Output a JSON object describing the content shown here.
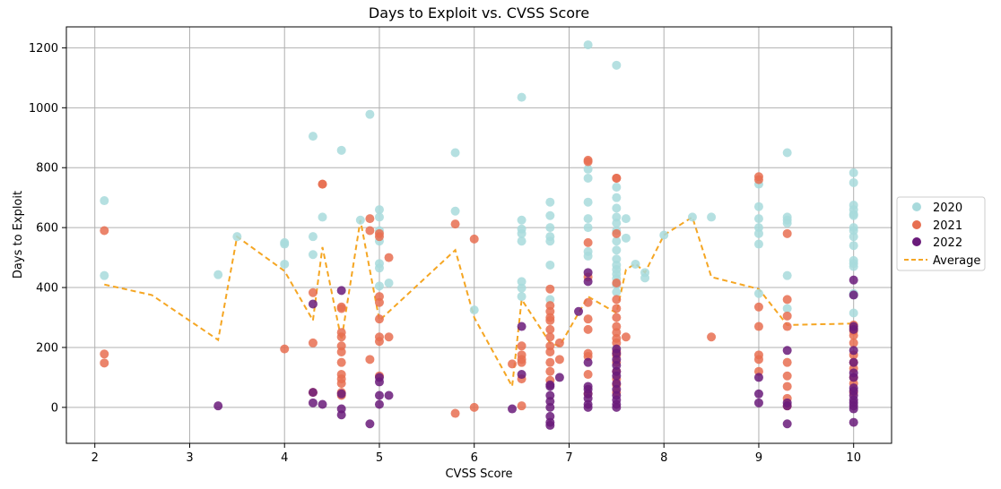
{
  "chart_data": {
    "type": "scatter",
    "title": "Days to Exploit vs. CVSS Score",
    "xlabel": "CVSS Score",
    "ylabel": "Days to Exploit",
    "xlim": [
      1.7,
      10.4
    ],
    "ylim": [
      -120,
      1270
    ],
    "xticks": [
      2,
      3,
      4,
      5,
      6,
      7,
      8,
      9,
      10
    ],
    "yticks": [
      0,
      200,
      400,
      600,
      800,
      1000,
      1200
    ],
    "grid": true,
    "legend_position": "center-right",
    "colors": {
      "s2020": "#a8dadc",
      "s2021": "#e76f51",
      "s2022": "#6a1b7a",
      "average": "#f5a623"
    },
    "series": [
      {
        "name": "2020",
        "points": [
          [
            2.1,
            690
          ],
          [
            2.1,
            440
          ],
          [
            3.3,
            443
          ],
          [
            3.5,
            570
          ],
          [
            4.0,
            550
          ],
          [
            4.0,
            545
          ],
          [
            4.0,
            478
          ],
          [
            4.3,
            905
          ],
          [
            4.3,
            570
          ],
          [
            4.3,
            510
          ],
          [
            4.4,
            635
          ],
          [
            4.6,
            858
          ],
          [
            4.8,
            625
          ],
          [
            4.9,
            978
          ],
          [
            5.0,
            660
          ],
          [
            5.0,
            635
          ],
          [
            5.0,
            590
          ],
          [
            5.0,
            555
          ],
          [
            5.0,
            480
          ],
          [
            5.0,
            465
          ],
          [
            5.0,
            405
          ],
          [
            5.1,
            415
          ],
          [
            5.8,
            850
          ],
          [
            5.8,
            655
          ],
          [
            6.0,
            325
          ],
          [
            6.5,
            1035
          ],
          [
            6.5,
            625
          ],
          [
            6.5,
            595
          ],
          [
            6.5,
            580
          ],
          [
            6.5,
            555
          ],
          [
            6.5,
            420
          ],
          [
            6.5,
            398
          ],
          [
            6.5,
            370
          ],
          [
            6.8,
            685
          ],
          [
            6.8,
            640
          ],
          [
            6.8,
            600
          ],
          [
            6.8,
            570
          ],
          [
            6.8,
            555
          ],
          [
            6.8,
            475
          ],
          [
            6.8,
            360
          ],
          [
            7.2,
            1210
          ],
          [
            7.2,
            795
          ],
          [
            7.2,
            765
          ],
          [
            7.2,
            685
          ],
          [
            7.2,
            630
          ],
          [
            7.2,
            600
          ],
          [
            7.2,
            520
          ],
          [
            7.2,
            505
          ],
          [
            7.5,
            1142
          ],
          [
            7.5,
            735
          ],
          [
            7.5,
            700
          ],
          [
            7.5,
            665
          ],
          [
            7.5,
            635
          ],
          [
            7.5,
            615
          ],
          [
            7.5,
            590
          ],
          [
            7.5,
            555
          ],
          [
            7.5,
            525
          ],
          [
            7.5,
            495
          ],
          [
            7.5,
            475
          ],
          [
            7.5,
            460
          ],
          [
            7.5,
            445
          ],
          [
            7.5,
            430
          ],
          [
            7.5,
            410
          ],
          [
            7.5,
            385
          ],
          [
            7.6,
            630
          ],
          [
            7.6,
            565
          ],
          [
            7.7,
            478
          ],
          [
            7.8,
            450
          ],
          [
            7.8,
            432
          ],
          [
            8.0,
            575
          ],
          [
            8.3,
            635
          ],
          [
            8.5,
            635
          ],
          [
            9.0,
            745
          ],
          [
            9.0,
            670
          ],
          [
            9.0,
            630
          ],
          [
            9.0,
            600
          ],
          [
            9.0,
            580
          ],
          [
            9.0,
            545
          ],
          [
            9.0,
            380
          ],
          [
            9.3,
            850
          ],
          [
            9.3,
            635
          ],
          [
            9.3,
            625
          ],
          [
            9.3,
            615
          ],
          [
            9.3,
            440
          ],
          [
            9.3,
            330
          ],
          [
            10.0,
            783
          ],
          [
            10.0,
            750
          ],
          [
            10.0,
            675
          ],
          [
            10.0,
            660
          ],
          [
            10.0,
            645
          ],
          [
            10.0,
            640
          ],
          [
            10.0,
            600
          ],
          [
            10.0,
            590
          ],
          [
            10.0,
            570
          ],
          [
            10.0,
            540
          ],
          [
            10.0,
            490
          ],
          [
            10.0,
            480
          ],
          [
            10.0,
            470
          ],
          [
            10.0,
            380
          ],
          [
            10.0,
            375
          ],
          [
            10.0,
            315
          ]
        ]
      },
      {
        "name": "2021",
        "points": [
          [
            2.1,
            590
          ],
          [
            2.1,
            178
          ],
          [
            2.1,
            148
          ],
          [
            4.0,
            195
          ],
          [
            4.3,
            383
          ],
          [
            4.3,
            215
          ],
          [
            4.3,
            50
          ],
          [
            4.4,
            745
          ],
          [
            4.4,
            745
          ],
          [
            4.6,
            335
          ],
          [
            4.6,
            330
          ],
          [
            4.6,
            250
          ],
          [
            4.6,
            235
          ],
          [
            4.6,
            205
          ],
          [
            4.6,
            185
          ],
          [
            4.6,
            150
          ],
          [
            4.6,
            110
          ],
          [
            4.6,
            95
          ],
          [
            4.6,
            80
          ],
          [
            4.6,
            50
          ],
          [
            4.6,
            40
          ],
          [
            4.9,
            630
          ],
          [
            4.9,
            590
          ],
          [
            4.9,
            160
          ],
          [
            5.0,
            580
          ],
          [
            5.0,
            570
          ],
          [
            5.0,
            370
          ],
          [
            5.0,
            350
          ],
          [
            5.0,
            295
          ],
          [
            5.0,
            235
          ],
          [
            5.0,
            220
          ],
          [
            5.0,
            105
          ],
          [
            5.1,
            500
          ],
          [
            5.1,
            235
          ],
          [
            5.8,
            612
          ],
          [
            5.8,
            -20
          ],
          [
            6.0,
            562
          ],
          [
            6.0,
            0
          ],
          [
            6.4,
            145
          ],
          [
            6.5,
            205
          ],
          [
            6.5,
            175
          ],
          [
            6.5,
            160
          ],
          [
            6.5,
            150
          ],
          [
            6.5,
            95
          ],
          [
            6.5,
            5
          ],
          [
            6.8,
            395
          ],
          [
            6.8,
            340
          ],
          [
            6.8,
            320
          ],
          [
            6.8,
            300
          ],
          [
            6.8,
            290
          ],
          [
            6.8,
            260
          ],
          [
            6.8,
            235
          ],
          [
            6.8,
            205
          ],
          [
            6.8,
            185
          ],
          [
            6.8,
            150
          ],
          [
            6.8,
            120
          ],
          [
            6.8,
            90
          ],
          [
            6.9,
            215
          ],
          [
            6.9,
            160
          ],
          [
            7.2,
            825
          ],
          [
            7.2,
            820
          ],
          [
            7.2,
            550
          ],
          [
            7.2,
            435
          ],
          [
            7.2,
            350
          ],
          [
            7.2,
            295
          ],
          [
            7.2,
            260
          ],
          [
            7.2,
            180
          ],
          [
            7.2,
            170
          ],
          [
            7.2,
            110
          ],
          [
            7.2,
            45
          ],
          [
            7.5,
            765
          ],
          [
            7.5,
            765
          ],
          [
            7.5,
            580
          ],
          [
            7.5,
            415
          ],
          [
            7.5,
            360
          ],
          [
            7.5,
            330
          ],
          [
            7.5,
            300
          ],
          [
            7.5,
            270
          ],
          [
            7.5,
            250
          ],
          [
            7.5,
            230
          ],
          [
            7.5,
            215
          ],
          [
            7.5,
            185
          ],
          [
            7.5,
            175
          ],
          [
            7.5,
            150
          ],
          [
            7.5,
            120
          ],
          [
            7.5,
            95
          ],
          [
            7.5,
            75
          ],
          [
            7.5,
            50
          ],
          [
            7.6,
            235
          ],
          [
            8.5,
            235
          ],
          [
            9.0,
            770
          ],
          [
            9.0,
            760
          ],
          [
            9.0,
            335
          ],
          [
            9.0,
            270
          ],
          [
            9.0,
            175
          ],
          [
            9.0,
            160
          ],
          [
            9.0,
            120
          ],
          [
            9.3,
            580
          ],
          [
            9.3,
            360
          ],
          [
            9.3,
            305
          ],
          [
            9.3,
            270
          ],
          [
            9.3,
            150
          ],
          [
            9.3,
            105
          ],
          [
            9.3,
            70
          ],
          [
            9.3,
            30
          ],
          [
            9.3,
            5
          ],
          [
            10.0,
            275
          ],
          [
            10.0,
            265
          ],
          [
            10.0,
            255
          ],
          [
            10.0,
            240
          ],
          [
            10.0,
            215
          ],
          [
            10.0,
            175
          ],
          [
            10.0,
            150
          ],
          [
            10.0,
            130
          ],
          [
            10.0,
            100
          ],
          [
            10.0,
            80
          ],
          [
            10.0,
            50
          ]
        ]
      },
      {
        "name": "2022",
        "points": [
          [
            3.3,
            5
          ],
          [
            4.3,
            345
          ],
          [
            4.3,
            50
          ],
          [
            4.3,
            15
          ],
          [
            4.4,
            10
          ],
          [
            4.6,
            390
          ],
          [
            4.6,
            45
          ],
          [
            4.6,
            -5
          ],
          [
            4.6,
            -25
          ],
          [
            4.9,
            -55
          ],
          [
            5.0,
            100
          ],
          [
            5.0,
            85
          ],
          [
            5.0,
            40
          ],
          [
            5.0,
            10
          ],
          [
            5.1,
            40
          ],
          [
            6.4,
            -5
          ],
          [
            6.5,
            270
          ],
          [
            6.5,
            110
          ],
          [
            6.8,
            75
          ],
          [
            6.8,
            70
          ],
          [
            6.8,
            40
          ],
          [
            6.8,
            20
          ],
          [
            6.8,
            0
          ],
          [
            6.8,
            -30
          ],
          [
            6.8,
            -50
          ],
          [
            6.8,
            -60
          ],
          [
            6.9,
            100
          ],
          [
            7.1,
            320
          ],
          [
            7.2,
            450
          ],
          [
            7.2,
            420
          ],
          [
            7.2,
            150
          ],
          [
            7.2,
            70
          ],
          [
            7.2,
            60
          ],
          [
            7.2,
            45
          ],
          [
            7.2,
            30
          ],
          [
            7.2,
            10
          ],
          [
            7.2,
            0
          ],
          [
            7.5,
            195
          ],
          [
            7.5,
            180
          ],
          [
            7.5,
            160
          ],
          [
            7.5,
            140
          ],
          [
            7.5,
            120
          ],
          [
            7.5,
            105
          ],
          [
            7.5,
            80
          ],
          [
            7.5,
            60
          ],
          [
            7.5,
            40
          ],
          [
            7.5,
            25
          ],
          [
            7.5,
            10
          ],
          [
            7.5,
            0
          ],
          [
            9.0,
            100
          ],
          [
            9.0,
            45
          ],
          [
            9.0,
            15
          ],
          [
            9.3,
            190
          ],
          [
            9.3,
            15
          ],
          [
            9.3,
            5
          ],
          [
            9.3,
            -55
          ],
          [
            10.0,
            425
          ],
          [
            10.0,
            375
          ],
          [
            10.0,
            270
          ],
          [
            10.0,
            260
          ],
          [
            10.0,
            190
          ],
          [
            10.0,
            150
          ],
          [
            10.0,
            115
          ],
          [
            10.0,
            100
          ],
          [
            10.0,
            65
          ],
          [
            10.0,
            55
          ],
          [
            10.0,
            40
          ],
          [
            10.0,
            25
          ],
          [
            10.0,
            15
          ],
          [
            10.0,
            5
          ],
          [
            10.0,
            -5
          ],
          [
            10.0,
            -50
          ]
        ]
      }
    ],
    "average": {
      "name": "Average",
      "points": [
        [
          2.1,
          410
        ],
        [
          2.6,
          375
        ],
        [
          3.3,
          225
        ],
        [
          3.5,
          570
        ],
        [
          4.0,
          455
        ],
        [
          4.3,
          290
        ],
        [
          4.4,
          535
        ],
        [
          4.6,
          225
        ],
        [
          4.8,
          625
        ],
        [
          5.0,
          290
        ],
        [
          5.8,
          525
        ],
        [
          6.0,
          300
        ],
        [
          6.4,
          70
        ],
        [
          6.5,
          360
        ],
        [
          6.8,
          215
        ],
        [
          6.9,
          205
        ],
        [
          7.2,
          370
        ],
        [
          7.5,
          315
        ],
        [
          7.6,
          460
        ],
        [
          7.7,
          480
        ],
        [
          7.8,
          450
        ],
        [
          8.0,
          575
        ],
        [
          8.3,
          635
        ],
        [
          8.5,
          435
        ],
        [
          9.0,
          395
        ],
        [
          9.3,
          275
        ],
        [
          10.0,
          280
        ]
      ]
    }
  }
}
